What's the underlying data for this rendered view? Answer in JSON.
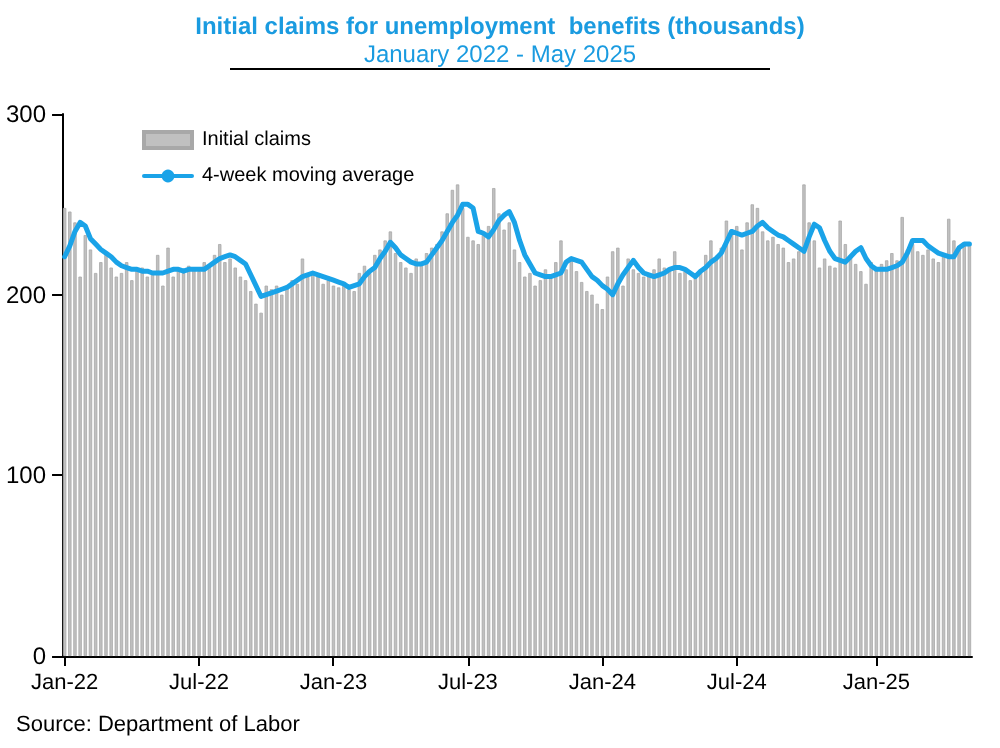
{
  "chart_data": {
    "type": "bar",
    "title": "Initial claims for unemployment  benefits (thousands)",
    "subtitle": "January 2022 - May 2025",
    "annotations": [
      "Source: Department of Labor"
    ],
    "categories": [
      "Jan-22",
      null,
      null,
      null,
      null,
      null,
      null,
      null,
      null,
      null,
      null,
      null,
      null,
      null,
      null,
      null,
      null,
      null,
      null,
      null,
      null,
      null,
      null,
      null,
      null,
      null,
      "Jul-22",
      null,
      null,
      null,
      null,
      null,
      null,
      null,
      null,
      null,
      null,
      null,
      null,
      null,
      null,
      null,
      null,
      null,
      null,
      null,
      null,
      null,
      null,
      null,
      null,
      null,
      "Jan-23",
      null,
      null,
      null,
      null,
      null,
      null,
      null,
      null,
      null,
      null,
      null,
      null,
      null,
      null,
      null,
      null,
      null,
      null,
      null,
      null,
      null,
      null,
      null,
      null,
      null,
      "Jul-23",
      null,
      null,
      null,
      null,
      null,
      null,
      null,
      null,
      null,
      null,
      null,
      null,
      null,
      null,
      null,
      null,
      null,
      null,
      null,
      null,
      null,
      null,
      null,
      null,
      null,
      "Jan-24",
      null,
      null,
      null,
      null,
      null,
      null,
      null,
      null,
      null,
      null,
      null,
      null,
      null,
      null,
      null,
      null,
      null,
      null,
      null,
      null,
      null,
      null,
      null,
      null,
      null,
      "Jul-24",
      null,
      null,
      null,
      null,
      null,
      null,
      null,
      null,
      null,
      null,
      null,
      null,
      null,
      null,
      null,
      null,
      null,
      null,
      null,
      null,
      null,
      null,
      null,
      null,
      null,
      null,
      "Jan-25",
      null,
      null,
      null,
      null,
      null,
      null,
      null,
      null,
      null,
      null,
      null,
      null,
      null,
      null,
      null,
      null,
      null,
      null
    ],
    "series": [
      {
        "name": "Initial claims",
        "color": "#c0c0c0",
        "values": [
          248,
          246,
          240,
          210,
          233,
          225,
          212,
          218,
          222,
          215,
          210,
          212,
          218,
          208,
          214,
          215,
          210,
          212,
          222,
          205,
          226,
          210,
          215,
          212,
          216,
          214,
          213,
          218,
          216,
          222,
          228,
          218,
          220,
          215,
          210,
          208,
          202,
          195,
          190,
          205,
          203,
          205,
          200,
          205,
          208,
          206,
          220,
          210,
          212,
          210,
          206,
          208,
          205,
          204,
          205,
          203,
          202,
          212,
          216,
          212,
          222,
          225,
          230,
          235,
          223,
          218,
          215,
          212,
          220,
          218,
          223,
          226,
          228,
          235,
          245,
          258,
          261,
          248,
          232,
          230,
          228,
          233,
          238,
          259,
          245,
          236,
          240,
          225,
          218,
          210,
          212,
          205,
          208,
          214,
          210,
          218,
          230,
          214,
          220,
          213,
          207,
          202,
          200,
          195,
          192,
          210,
          224,
          226,
          205,
          220,
          214,
          212,
          210,
          210,
          214,
          220,
          215,
          214,
          224,
          212,
          213,
          208,
          210,
          214,
          222,
          230,
          221,
          226,
          241,
          236,
          238,
          225,
          240,
          250,
          248,
          235,
          230,
          232,
          228,
          226,
          218,
          220,
          224,
          261,
          240,
          230,
          215,
          220,
          216,
          215,
          241,
          228,
          222,
          217,
          213,
          206,
          218,
          214,
          217,
          219,
          223,
          219,
          243,
          225,
          228,
          224,
          222,
          225,
          220,
          218,
          222,
          242,
          230,
          226,
          229,
          228
        ]
      },
      {
        "name": "4-week moving average",
        "type": "line",
        "color": "#1aa3e8",
        "values": [
          221,
          227,
          235,
          240,
          238,
          231,
          228,
          225,
          223,
          221,
          218,
          216,
          215,
          214,
          214,
          213,
          213,
          212,
          212,
          212,
          213,
          214,
          214,
          213,
          214,
          214,
          214,
          214,
          216,
          218,
          220,
          221,
          222,
          221,
          219,
          217,
          211,
          205,
          199,
          200,
          201,
          202,
          203,
          204,
          206,
          208,
          210,
          211,
          212,
          211,
          210,
          209,
          208,
          207,
          206,
          204,
          205,
          206,
          210,
          213,
          215,
          220,
          224,
          229,
          226,
          222,
          220,
          218,
          217,
          217,
          218,
          222,
          226,
          230,
          235,
          240,
          244,
          250,
          250,
          248,
          235,
          234,
          232,
          236,
          241,
          244,
          246,
          240,
          230,
          222,
          217,
          212,
          211,
          210,
          210,
          211,
          212,
          218,
          220,
          219,
          218,
          214,
          210,
          208,
          205,
          203,
          200,
          206,
          211,
          215,
          219,
          215,
          212,
          211,
          210,
          211,
          212,
          214,
          215,
          215,
          214,
          212,
          210,
          213,
          215,
          218,
          220,
          223,
          229,
          235,
          234,
          233,
          234,
          235,
          238,
          240,
          237,
          235,
          233,
          232,
          230,
          228,
          226,
          224,
          232,
          239,
          237,
          230,
          224,
          220,
          219,
          218,
          221,
          224,
          226,
          220,
          216,
          214,
          214,
          214,
          215,
          216,
          218,
          223,
          230,
          230,
          230,
          227,
          225,
          223,
          222,
          221,
          221,
          226,
          228,
          228
        ]
      }
    ],
    "ylim": [
      0,
      300
    ],
    "yticks": [
      0,
      100,
      200,
      300
    ],
    "grid": false,
    "legend": "top left",
    "marker": "none",
    "line_style": "solid"
  }
}
